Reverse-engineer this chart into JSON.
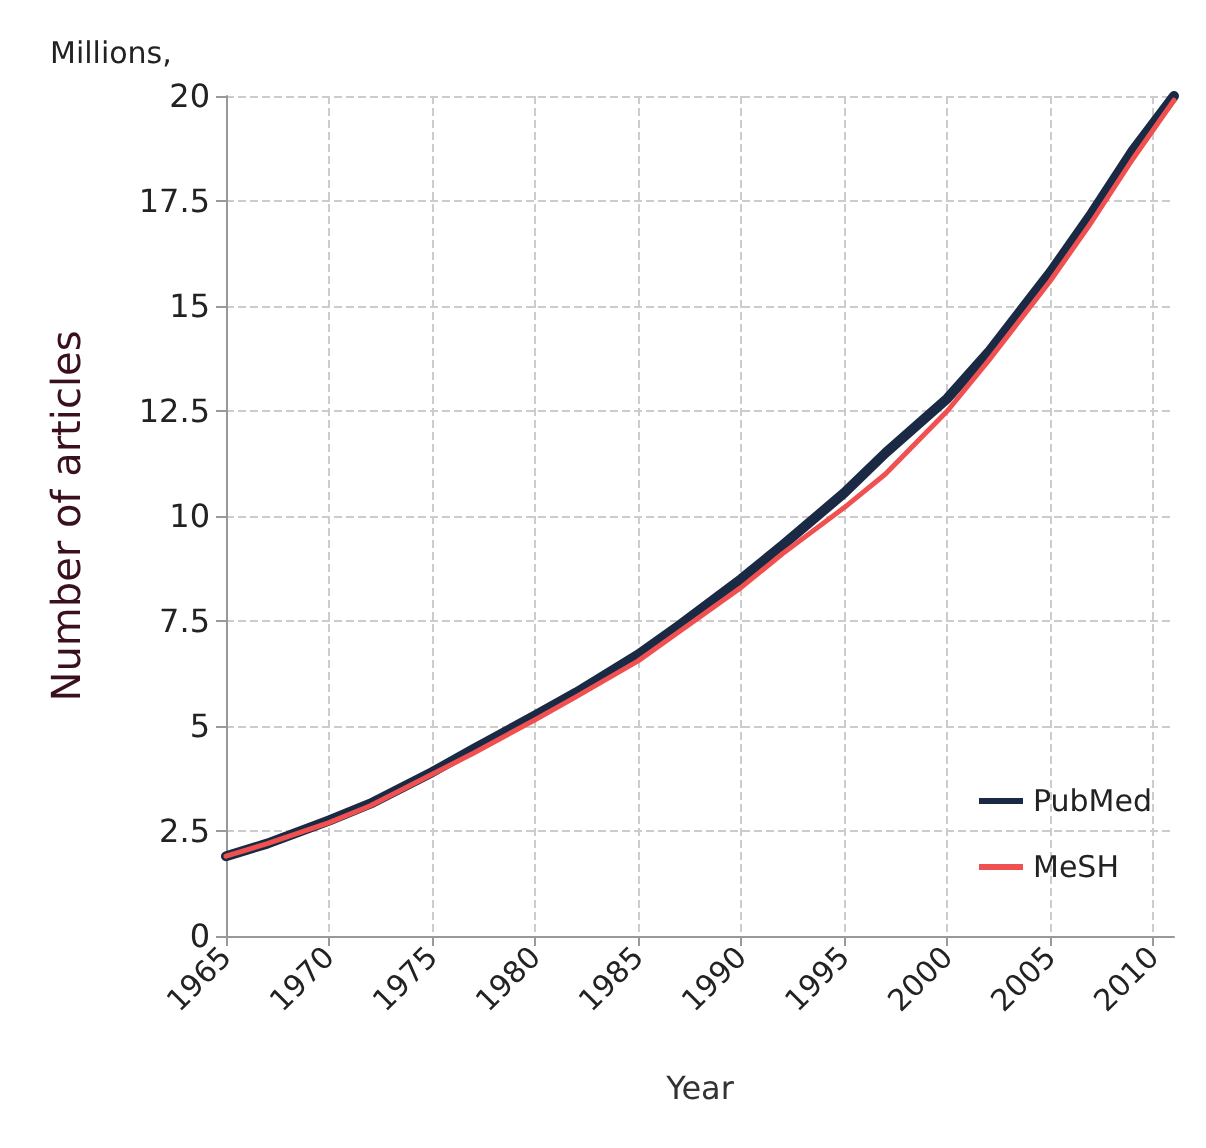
{
  "chart_data": {
    "type": "line",
    "title": "Millions,",
    "xlabel": "Year",
    "ylabel": "Number of articles",
    "xlim": [
      1965,
      2011
    ],
    "xticks": [
      1965,
      1970,
      1975,
      1980,
      1985,
      1990,
      1995,
      2000,
      2005,
      2010
    ],
    "ylim": [
      0,
      20
    ],
    "yticks": [
      0,
      2.5,
      5,
      7.5,
      10,
      12.5,
      15,
      17.5,
      20
    ],
    "grid": true,
    "legend": "bottom right",
    "line_style": "solid",
    "marker": "none",
    "series": [
      {
        "name": "PubMed",
        "color": "#1a2a44",
        "x": [
          1965,
          1967,
          1970,
          1972,
          1975,
          1977,
          1980,
          1982,
          1985,
          1987,
          1990,
          1992,
          1995,
          1997,
          2000,
          2002,
          2005,
          2007,
          2009,
          2011
        ],
        "values": [
          1.9,
          2.2,
          2.75,
          3.15,
          3.9,
          4.45,
          5.25,
          5.8,
          6.7,
          7.4,
          8.5,
          9.3,
          10.55,
          11.5,
          12.8,
          13.9,
          15.8,
          17.2,
          18.7,
          20
        ]
      },
      {
        "name": "MeSH",
        "color": "#f05050",
        "x": [
          1965,
          1967,
          1970,
          1972,
          1975,
          1977,
          1980,
          1982,
          1985,
          1987,
          1990,
          1992,
          1995,
          1997,
          2000,
          2002,
          2005,
          2007,
          2009,
          2011
        ],
        "values": [
          1.9,
          2.2,
          2.7,
          3.1,
          3.85,
          4.35,
          5.15,
          5.7,
          6.55,
          7.25,
          8.3,
          9.1,
          10.2,
          11.0,
          12.5,
          13.7,
          15.6,
          17.0,
          18.5,
          19.9
        ]
      }
    ]
  }
}
